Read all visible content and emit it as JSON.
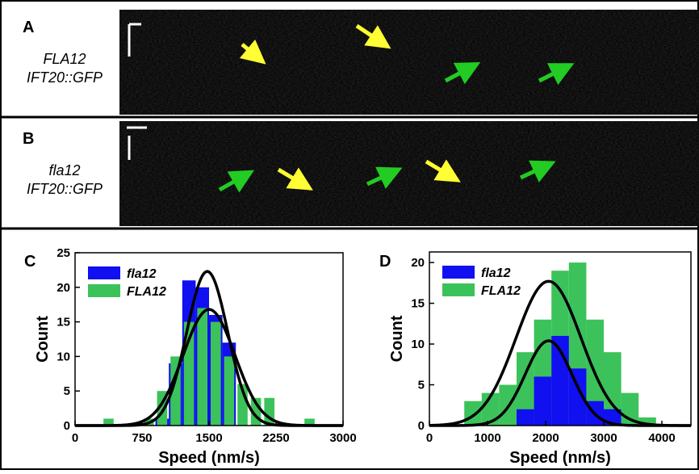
{
  "panels": [
    {
      "letter": "A",
      "lines": [
        "FLA12",
        "IFT20::GFP"
      ]
    },
    {
      "letter": "B",
      "lines": [
        "fla12",
        "IFT20::GFP"
      ]
    }
  ],
  "chart_data": [
    {
      "type": "histogram",
      "letter": "C",
      "xlabel": "Speed (nm/s)",
      "ylabel": "Count",
      "xlim": [
        0,
        3000
      ],
      "ylim": [
        0,
        25
      ],
      "xticks": [
        0,
        750,
        1500,
        2250,
        3000
      ],
      "yticks": [
        0,
        5,
        10,
        15,
        20,
        25
      ],
      "legend": "top-left",
      "bins": [
        300,
        450,
        600,
        750,
        900,
        1050,
        1200,
        1350,
        1500,
        1650,
        1800,
        1950,
        2100,
        2250,
        2400,
        2550,
        2700
      ],
      "series": [
        {
          "name": "fla12",
          "color": "#1010f0",
          "values": [
            0,
            0,
            0,
            0,
            1,
            9,
            21,
            20,
            16,
            12,
            0,
            0,
            0,
            0,
            0,
            0
          ],
          "fit": {
            "peak": 22.3,
            "center": 1480,
            "sd": 230
          }
        },
        {
          "name": "FLA12",
          "color": "#3cc25a",
          "values": [
            1,
            0,
            0,
            1,
            5,
            10,
            15,
            17,
            15,
            10,
            6,
            4,
            4,
            0,
            0,
            1
          ],
          "fit": {
            "peak": 16.8,
            "center": 1500,
            "sd": 290
          }
        }
      ],
      "front_series": 1
    },
    {
      "type": "histogram",
      "letter": "D",
      "xlabel": "Speed (nm/s)",
      "ylabel": "Count",
      "xlim": [
        0,
        4500
      ],
      "ylim": [
        0,
        21.3
      ],
      "xticks": [
        0,
        1000,
        2000,
        3000,
        4000
      ],
      "yticks": [
        0,
        5,
        10,
        15,
        20
      ],
      "legend": "top-left",
      "bins": [
        600,
        900,
        1200,
        1500,
        1800,
        2100,
        2400,
        2700,
        3000,
        3300,
        3600,
        3900
      ],
      "series": [
        {
          "name": "fla12",
          "color": "#1010f0",
          "values": [
            0,
            0,
            0,
            2,
            6,
            11,
            7,
            3,
            2,
            0,
            0
          ],
          "fit": {
            "peak": 10.4,
            "center": 2050,
            "sd": 400
          }
        },
        {
          "name": "FLA12",
          "color": "#3cc25a",
          "values": [
            3,
            4,
            5,
            9,
            13,
            19,
            20,
            13,
            9,
            4,
            1
          ],
          "fit": {
            "peak": 17.7,
            "center": 2050,
            "sd": 560
          }
        }
      ],
      "front_series": 0
    }
  ]
}
